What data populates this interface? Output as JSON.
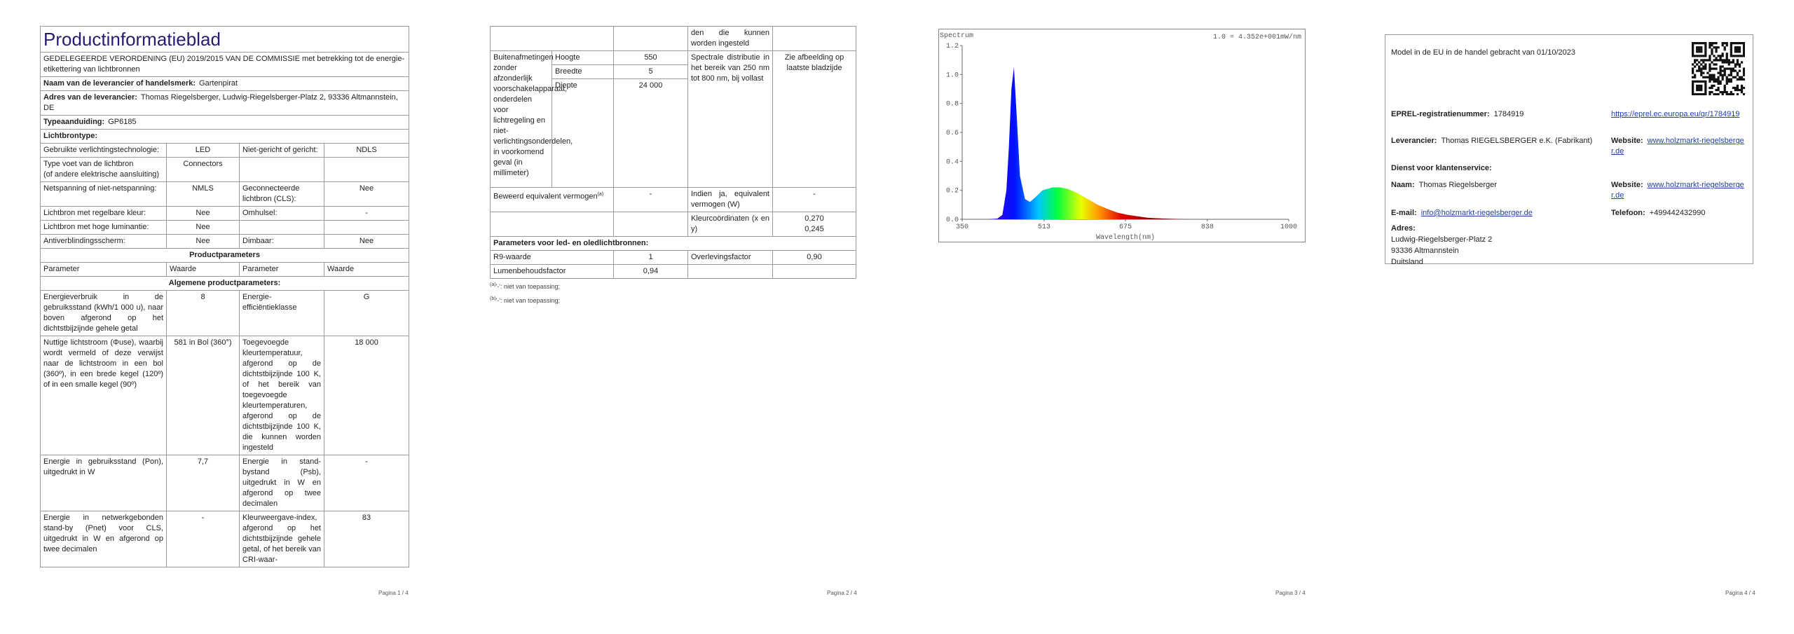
{
  "page1": {
    "title": "Productinformatieblad",
    "subtitle": "GEDELEGEERDE VERORDENING (EU) 2019/2015 VAN DE COMMISSIE met betrekking tot de energie-etikettering van lichtbronnen",
    "supplier_rows": [
      {
        "label": "Naam van de leverancier of handelsmerk:",
        "value": "Gartenpirat"
      },
      {
        "label": "Adres van de leverancier:",
        "value": "Thomas Riegelsberger, Ludwig-Riegelsberger-Platz 2, 93336 Altmannstein, DE"
      },
      {
        "label": "Typeaanduiding:",
        "value": "GP6185"
      }
    ],
    "lightsource_type": "Lichtbrontype:",
    "rows": [
      [
        "Gebruikte verlichtingstechnologie:",
        "LED",
        "Niet-gericht of gericht:",
        "NDLS"
      ],
      [
        [
          "Type voet van de lichtbron",
          "(of andere elektrische aansluiting)"
        ],
        "Connectors",
        null,
        null
      ],
      [
        "Netspanning of niet-netspanning:",
        "NMLS",
        "Geconnecteerde lichtbron (CLS):",
        "Nee"
      ],
      [
        "Lichtbron met regelbare kleur:",
        "Nee",
        "Omhulsel:",
        "-"
      ],
      [
        "Lichtbron met hoge luminantie:",
        "Nee",
        null,
        null
      ],
      [
        "Antiverblindingsscherm:",
        "Nee",
        "Dimbaar:",
        "Nee"
      ]
    ],
    "section_heading": "Productparameters",
    "header": [
      "Parameter",
      "Waarde",
      "Parameter",
      "Waarde"
    ],
    "subsection": "Algemene productparameters:",
    "params": [
      [
        "Energieverbruik in de gebruiksstand (kWh/1 000 u), naar boven afgerond op het dichtstbijzijnde gehele getal",
        "8",
        "Energie-efficiëntieklasse",
        "G"
      ],
      [
        "Nuttige lichtstroom (Φuse), waarbij wordt vermeld of deze verwijst naar de lichtstroom in een bol (360º), in een brede kegel (120º) of in een smalle kegel (90º)",
        "581 in Bol (360°)",
        "Toegevoegde kleurtemperatuur, afgerond op de dichtstbijzijnde 100 K, of het bereik van toegevoegde kleurtemperaturen, afgerond op de dichtstbijzijnde 100 K, die kunnen worden ingesteld",
        "18 000"
      ],
      [
        "Energie in gebruiksstand (Pon), uitgedrukt in W",
        "7,7",
        "Energie in stand-bystand (Psb), uitgedrukt in W en afgerond op twee decimalen",
        "-"
      ],
      [
        "Energie in netwerkgebonden stand-by (Pnet) voor CLS, uitgedrukt in W en afgerond op twee decimalen",
        "-",
        "Kleurweergave-index, afgerond op het dichtstbijzijnde gehele getal, of het bereik van CRI-waar-",
        "83"
      ]
    ],
    "page_number": "Pagina 1 / 4"
  },
  "page2": {
    "continuation": [
      null,
      null,
      "den die kunnen worden ingesteld",
      null
    ],
    "dimensions": {
      "label": "Buitenafmetingen zonder afzonderlijk voorschakelapparaat, onderdelen voor lichtregeling en niet-verlichtingsonderdelen, in voorkomend geval (in millimeter)",
      "items": [
        {
          "name": "Hoogte",
          "value": "550"
        },
        {
          "name": "Breedte",
          "value": "5"
        },
        {
          "name": "Diepte",
          "value": "24 000"
        }
      ],
      "spectral_label": "Spectrale distributie in het bereik van 250 nm tot 800 nm, bij vollast",
      "spectral_value": "Zie afbeelding op laatste bladzijde"
    },
    "rows": [
      [
        {
          "text": "Beweerd equivalent vermogen",
          "ref": "(a)"
        },
        "-",
        "Indien ja, equivalent vermogen (W)",
        "-"
      ],
      [
        null,
        null,
        "Kleurcoördinaten (x en y)",
        [
          "0,270",
          "0,245"
        ]
      ]
    ],
    "led_heading": "Parameters voor led- en oledlichtbronnen:",
    "led_rows": [
      [
        "R9-waarde",
        "1",
        "Overlevingsfactor",
        "0,90"
      ],
      [
        "Lumenbehoudsfactor",
        "0,94",
        null,
        null
      ]
    ],
    "notes": [
      {
        "ref": "(a)",
        "text": "'-': niet van toepassing;"
      },
      {
        "ref": "(b)",
        "text": "'-': niet van toepassing;"
      }
    ],
    "page_number": "Pagina 2 / 4"
  },
  "page3": {
    "spectrum": {
      "type": "area",
      "title": "Spectrum",
      "note": "1.0 = 4.352e+001mW/nm",
      "x_label": "Wavelength(nm)",
      "x": [
        350,
        400,
        420,
        430,
        438,
        443,
        448,
        453,
        458,
        465,
        475,
        485,
        495,
        510,
        530,
        545,
        560,
        580,
        600,
        620,
        640,
        660,
        680,
        700,
        720,
        750,
        800,
        1000
      ],
      "y": [
        0,
        0,
        0.005,
        0.03,
        0.2,
        0.5,
        0.9,
        1.05,
        0.75,
        0.3,
        0.14,
        0.12,
        0.15,
        0.2,
        0.22,
        0.22,
        0.21,
        0.18,
        0.14,
        0.1,
        0.07,
        0.045,
        0.03,
        0.02,
        0.01,
        0.005,
        0,
        0
      ],
      "xlim": [
        350,
        1000
      ],
      "ylim": [
        0,
        1.2
      ],
      "xticks": [
        350,
        513,
        675,
        838,
        1000
      ],
      "yticks": [
        {
          "value": 0,
          "label": "0.0"
        },
        0.2,
        0.4,
        0.6,
        0.8,
        {
          "value": 1,
          "label": "1.0"
        },
        1.2
      ]
    },
    "page_number": "Pagina 3 / 4"
  },
  "page4": {
    "placed": "Model in de EU in de handel gebracht van 01/10/2023",
    "rows": [
      [
        {
          "label": "EPREL-registratienummer:",
          "value": "1784919"
        },
        {
          "url": "https://eprel.ec.europa.eu/qr/1784919"
        }
      ],
      [
        {
          "label": "Leverancier:",
          "value": "Thomas RIEGELSBERGER e.K. (Fabrikant)"
        },
        {
          "label": "Website:",
          "url": "www.holzmarkt-riegelsberger.de"
        }
      ]
    ],
    "service_heading": "Dienst voor klantenservice:",
    "service_rows": [
      [
        {
          "label": "Naam:",
          "value": "Thomas Riegelsberger"
        },
        {
          "label": "Website:",
          "url": "www.holzmarkt-riegelsberger.de"
        }
      ],
      [
        {
          "label": "E-mail:",
          "url": "info@holzmarkt-riegelsberger.de"
        },
        {
          "label": "Telefoon:",
          "value": "+499442432990"
        }
      ]
    ],
    "address_label": "Adres:",
    "address_lines": [
      "Ludwig-Riegelsberger-Platz 2",
      "93336 Altmannstein",
      "Duitsland"
    ],
    "page_number": "Pagina 4 / 4"
  }
}
